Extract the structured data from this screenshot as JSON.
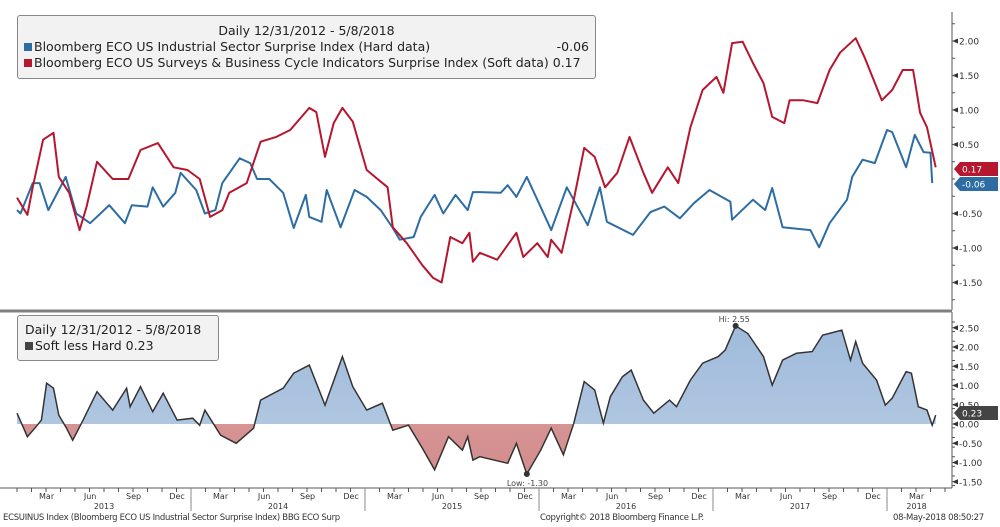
{
  "chart_data": [
    {
      "type": "line",
      "title": "Daily 12/31/2012 - 5/8/2018",
      "x_units": "decimal year",
      "ylim": [
        -1.75,
        2.4
      ],
      "yticks": [
        "2.00",
        "1.50",
        "1.00",
        "0.50",
        "-0.50",
        "-1.00",
        "-1.50"
      ],
      "ytick_values": [
        2.0,
        1.5,
        1.0,
        0.5,
        -0.5,
        -1.0,
        -1.5
      ],
      "legend_placement": "top-left",
      "series": [
        {
          "name": "Bloomberg ECO US Industrial Sector Surprise Index (Hard data)",
          "last_label": "-0.06",
          "color": "#2e6da4",
          "x": [
            2013.0,
            2013.02,
            2013.09,
            2013.13,
            2013.18,
            2013.28,
            2013.34,
            2013.42,
            2013.48,
            2013.53,
            2013.62,
            2013.66,
            2013.75,
            2013.78,
            2013.84,
            2013.91,
            2013.94,
            2014.03,
            2014.08,
            2014.14,
            2014.18,
            2014.28,
            2014.34,
            2014.38,
            2014.45,
            2014.53,
            2014.59,
            2014.66,
            2014.68,
            2014.75,
            2014.78,
            2014.86,
            2014.94,
            2015.01,
            2015.09,
            2015.16,
            2015.2,
            2015.28,
            2015.32,
            2015.4,
            2015.45,
            2015.52,
            2015.59,
            2015.62,
            2015.66,
            2015.78,
            2015.82,
            2015.87,
            2015.93,
            2015.99,
            2016.07,
            2016.16,
            2016.28,
            2016.35,
            2016.39,
            2016.54,
            2016.64,
            2016.72,
            2016.81,
            2016.89,
            2016.98,
            2017.1,
            2017.11,
            2017.23,
            2017.3,
            2017.34,
            2017.4,
            2017.56,
            2017.61,
            2017.67,
            2017.77,
            2017.8,
            2017.86,
            2017.93,
            2018.0,
            2018.03,
            2018.11,
            2018.16,
            2018.21,
            2018.25,
            2018.26
          ],
          "y": [
            -0.45,
            -0.5,
            -0.06,
            -0.06,
            -0.45,
            0.03,
            -0.5,
            -0.64,
            -0.5,
            -0.38,
            -0.64,
            -0.38,
            -0.4,
            -0.12,
            -0.4,
            -0.2,
            0.09,
            -0.16,
            -0.5,
            -0.45,
            -0.06,
            0.3,
            0.23,
            0,
            0,
            -0.2,
            -0.71,
            -0.23,
            -0.55,
            -0.62,
            -0.16,
            -0.7,
            -0.16,
            -0.26,
            -0.45,
            -0.71,
            -0.88,
            -0.84,
            -0.55,
            -0.23,
            -0.5,
            -0.23,
            -0.45,
            -0.19,
            -0.19,
            -0.2,
            -0.09,
            -0.26,
            0.03,
            -0.3,
            -0.74,
            -0.12,
            -0.67,
            -0.12,
            -0.62,
            -0.81,
            -0.48,
            -0.4,
            -0.57,
            -0.35,
            -0.16,
            -0.33,
            -0.59,
            -0.3,
            -0.45,
            -0.13,
            -0.7,
            -0.74,
            -0.99,
            -0.64,
            -0.3,
            0.03,
            0.28,
            0.23,
            0.71,
            0.68,
            0.17,
            0.64,
            0.39,
            0.38,
            -0.06
          ]
        },
        {
          "name": "Bloomberg ECO US Surveys & Business Cycle Indicators Surprise Index (Soft data)",
          "last_label": "0.17",
          "color": "#b5172f",
          "x": [
            2013.0,
            2013.06,
            2013.09,
            2013.15,
            2013.21,
            2013.24,
            2013.3,
            2013.36,
            2013.4,
            2013.46,
            2013.55,
            2013.64,
            2013.71,
            2013.81,
            2013.9,
            2013.98,
            2014.05,
            2014.11,
            2014.18,
            2014.22,
            2014.32,
            2014.4,
            2014.49,
            2014.57,
            2014.68,
            2014.72,
            2014.77,
            2014.82,
            2014.87,
            2014.93,
            2015.01,
            2015.13,
            2015.16,
            2015.24,
            2015.33,
            2015.39,
            2015.44,
            2015.49,
            2015.56,
            2015.6,
            2015.62,
            2015.66,
            2015.76,
            2015.87,
            2015.91,
            2015.99,
            2016.05,
            2016.07,
            2016.13,
            2016.2,
            2016.26,
            2016.32,
            2016.38,
            2016.45,
            2016.52,
            2016.6,
            2016.65,
            2016.74,
            2016.8,
            2016.87,
            2016.94,
            2017.02,
            2017.06,
            2017.11,
            2017.17,
            2017.23,
            2017.29,
            2017.34,
            2017.41,
            2017.44,
            2017.52,
            2017.6,
            2017.67,
            2017.73,
            2017.82,
            2017.87,
            2017.97,
            2018.03,
            2018.09,
            2018.15,
            2018.19,
            2018.23,
            2018.28
          ],
          "y": [
            -0.27,
            -0.52,
            -0.12,
            0.57,
            0.67,
            0.03,
            -0.2,
            -0.74,
            -0.4,
            0.25,
            0,
            0,
            0.42,
            0.52,
            0.17,
            0.13,
            0,
            -0.55,
            -0.45,
            -0.2,
            -0.06,
            0.54,
            0.61,
            0.71,
            1.03,
            0.97,
            0.32,
            0.81,
            1.03,
            0.83,
            0.13,
            -0.12,
            -0.7,
            -0.93,
            -1.25,
            -1.43,
            -1.5,
            -0.84,
            -0.93,
            -0.78,
            -1.2,
            -1.07,
            -1.17,
            -0.78,
            -1.13,
            -0.93,
            -1.13,
            -0.88,
            -1.07,
            -0.3,
            0.45,
            0.32,
            -0.12,
            0.09,
            0.61,
            0.09,
            -0.2,
            0.17,
            -0.06,
            0.75,
            1.29,
            1.48,
            1.25,
            1.97,
            1.99,
            1.68,
            1.39,
            0.9,
            0.81,
            1.14,
            1.14,
            1.1,
            1.58,
            1.83,
            2.04,
            1.77,
            1.14,
            1.29,
            1.58,
            1.58,
            0.96,
            0.75,
            0.17
          ]
        }
      ]
    },
    {
      "type": "area",
      "title": "Daily 12/31/2012 - 5/8/2018",
      "x_units": "decimal year",
      "ylim": [
        -1.6,
        2.85
      ],
      "yticks": [
        "2.50",
        "2.00",
        "1.50",
        "1.00",
        "0.50",
        "0.00",
        "-0.50",
        "-1.00",
        "-1.50"
      ],
      "ytick_values": [
        2.5,
        2.0,
        1.5,
        1.0,
        0.5,
        0.0,
        -0.5,
        -1.0,
        -1.5
      ],
      "legend_placement": "top-left",
      "annotations": {
        "high": "Hi: 2.55",
        "high_x": 2017.13,
        "high_y": 2.55,
        "low": "Low: -1.30",
        "low_x": 2015.93,
        "low_y": -1.3
      },
      "series": [
        {
          "name": "Soft less Hard",
          "legend_label": "Soft less Hard 0.23",
          "last_label": "0.23",
          "color": "#333333",
          "pos_fill": "#b8cde4",
          "neg_fill": "#dca3a3",
          "x": [
            2013.0,
            2013.06,
            2013.11,
            2013.14,
            2013.17,
            2013.21,
            2013.24,
            2013.28,
            2013.32,
            2013.38,
            2013.46,
            2013.55,
            2013.63,
            2013.65,
            2013.71,
            2013.78,
            2013.84,
            2013.92,
            2014.01,
            2014.05,
            2014.08,
            2014.17,
            2014.26,
            2014.36,
            2014.4,
            2014.53,
            2014.59,
            2014.68,
            2014.77,
            2014.87,
            2014.93,
            2015.01,
            2015.1,
            2015.16,
            2015.25,
            2015.33,
            2015.4,
            2015.48,
            2015.56,
            2015.59,
            2015.62,
            2015.66,
            2015.82,
            2015.87,
            2015.93,
            2016.01,
            2016.07,
            2016.14,
            2016.2,
            2016.26,
            2016.32,
            2016.37,
            2016.41,
            2016.48,
            2016.53,
            2016.6,
            2016.66,
            2016.75,
            2016.79,
            2016.87,
            2016.94,
            2017.03,
            2017.07,
            2017.13,
            2017.2,
            2017.29,
            2017.34,
            2017.4,
            2017.48,
            2017.57,
            2017.63,
            2017.74,
            2017.79,
            2017.82,
            2017.86,
            2017.94,
            2017.99,
            2018.03,
            2018.11,
            2018.14,
            2018.18,
            2018.23,
            2018.26,
            2018.28
          ],
          "y": [
            0.28,
            -0.33,
            -0.07,
            0.1,
            1.06,
            0.93,
            0.23,
            -0.07,
            -0.42,
            0.1,
            0.84,
            0.36,
            0.93,
            0.45,
            0.97,
            0.32,
            0.8,
            0.1,
            0.15,
            -0.03,
            0.36,
            -0.29,
            -0.5,
            -0.11,
            0.62,
            0.93,
            1.32,
            1.53,
            0.49,
            1.75,
            0.97,
            0.36,
            0.54,
            -0.16,
            -0.03,
            -0.63,
            -1.19,
            -0.33,
            -0.68,
            -0.33,
            -0.94,
            -0.85,
            -1.02,
            -0.5,
            -1.3,
            -0.68,
            -0.11,
            -0.8,
            0.02,
            1.1,
            0.88,
            0.02,
            0.71,
            1.23,
            1.4,
            0.62,
            0.28,
            0.62,
            0.45,
            1.14,
            1.58,
            1.75,
            1.92,
            2.55,
            2.35,
            1.75,
            1.01,
            1.66,
            1.84,
            1.88,
            2.31,
            2.44,
            1.66,
            2.14,
            1.58,
            1.14,
            0.49,
            0.67,
            1.36,
            1.32,
            0.45,
            0.36,
            -0.03,
            0.23
          ]
        }
      ]
    }
  ],
  "legend_top": {
    "title": "Daily 12/31/2012 - 5/8/2018",
    "hard_label": "Bloomberg ECO US Industrial Sector Surprise Index (Hard data)",
    "hard_value": "-0.06",
    "soft_label": "Bloomberg ECO US Surveys & Business Cycle Indicators Surprise Index (Soft data)",
    "soft_value": "0.17"
  },
  "legend_bottom": {
    "title": "Daily 12/31/2012 - 5/8/2018",
    "label": "Soft less Hard 0.23"
  },
  "x_axis": {
    "months": [
      "Mar",
      "Jun",
      "Sep",
      "Dec"
    ],
    "month_values": [
      0.17,
      0.42,
      0.67,
      0.92
    ],
    "years": [
      "2013",
      "2014",
      "2015",
      "2016",
      "2017",
      "2018"
    ],
    "year_values": [
      2013,
      2014,
      2015,
      2016,
      2017,
      2018
    ],
    "last_year_months": [
      "Mar"
    ]
  },
  "footer": {
    "left": "ECSUINUS Index (Bloomberg ECO US Industrial Sector Surprise Index) BBG ECO Surp",
    "center": "Copyright© 2018 Bloomberg Finance L.P.",
    "right": "08-May-2018 08:50:27"
  },
  "colors": {
    "hard": "#2e6da4",
    "soft": "#b5172f",
    "spread": "#444444",
    "separator": "#808080"
  }
}
